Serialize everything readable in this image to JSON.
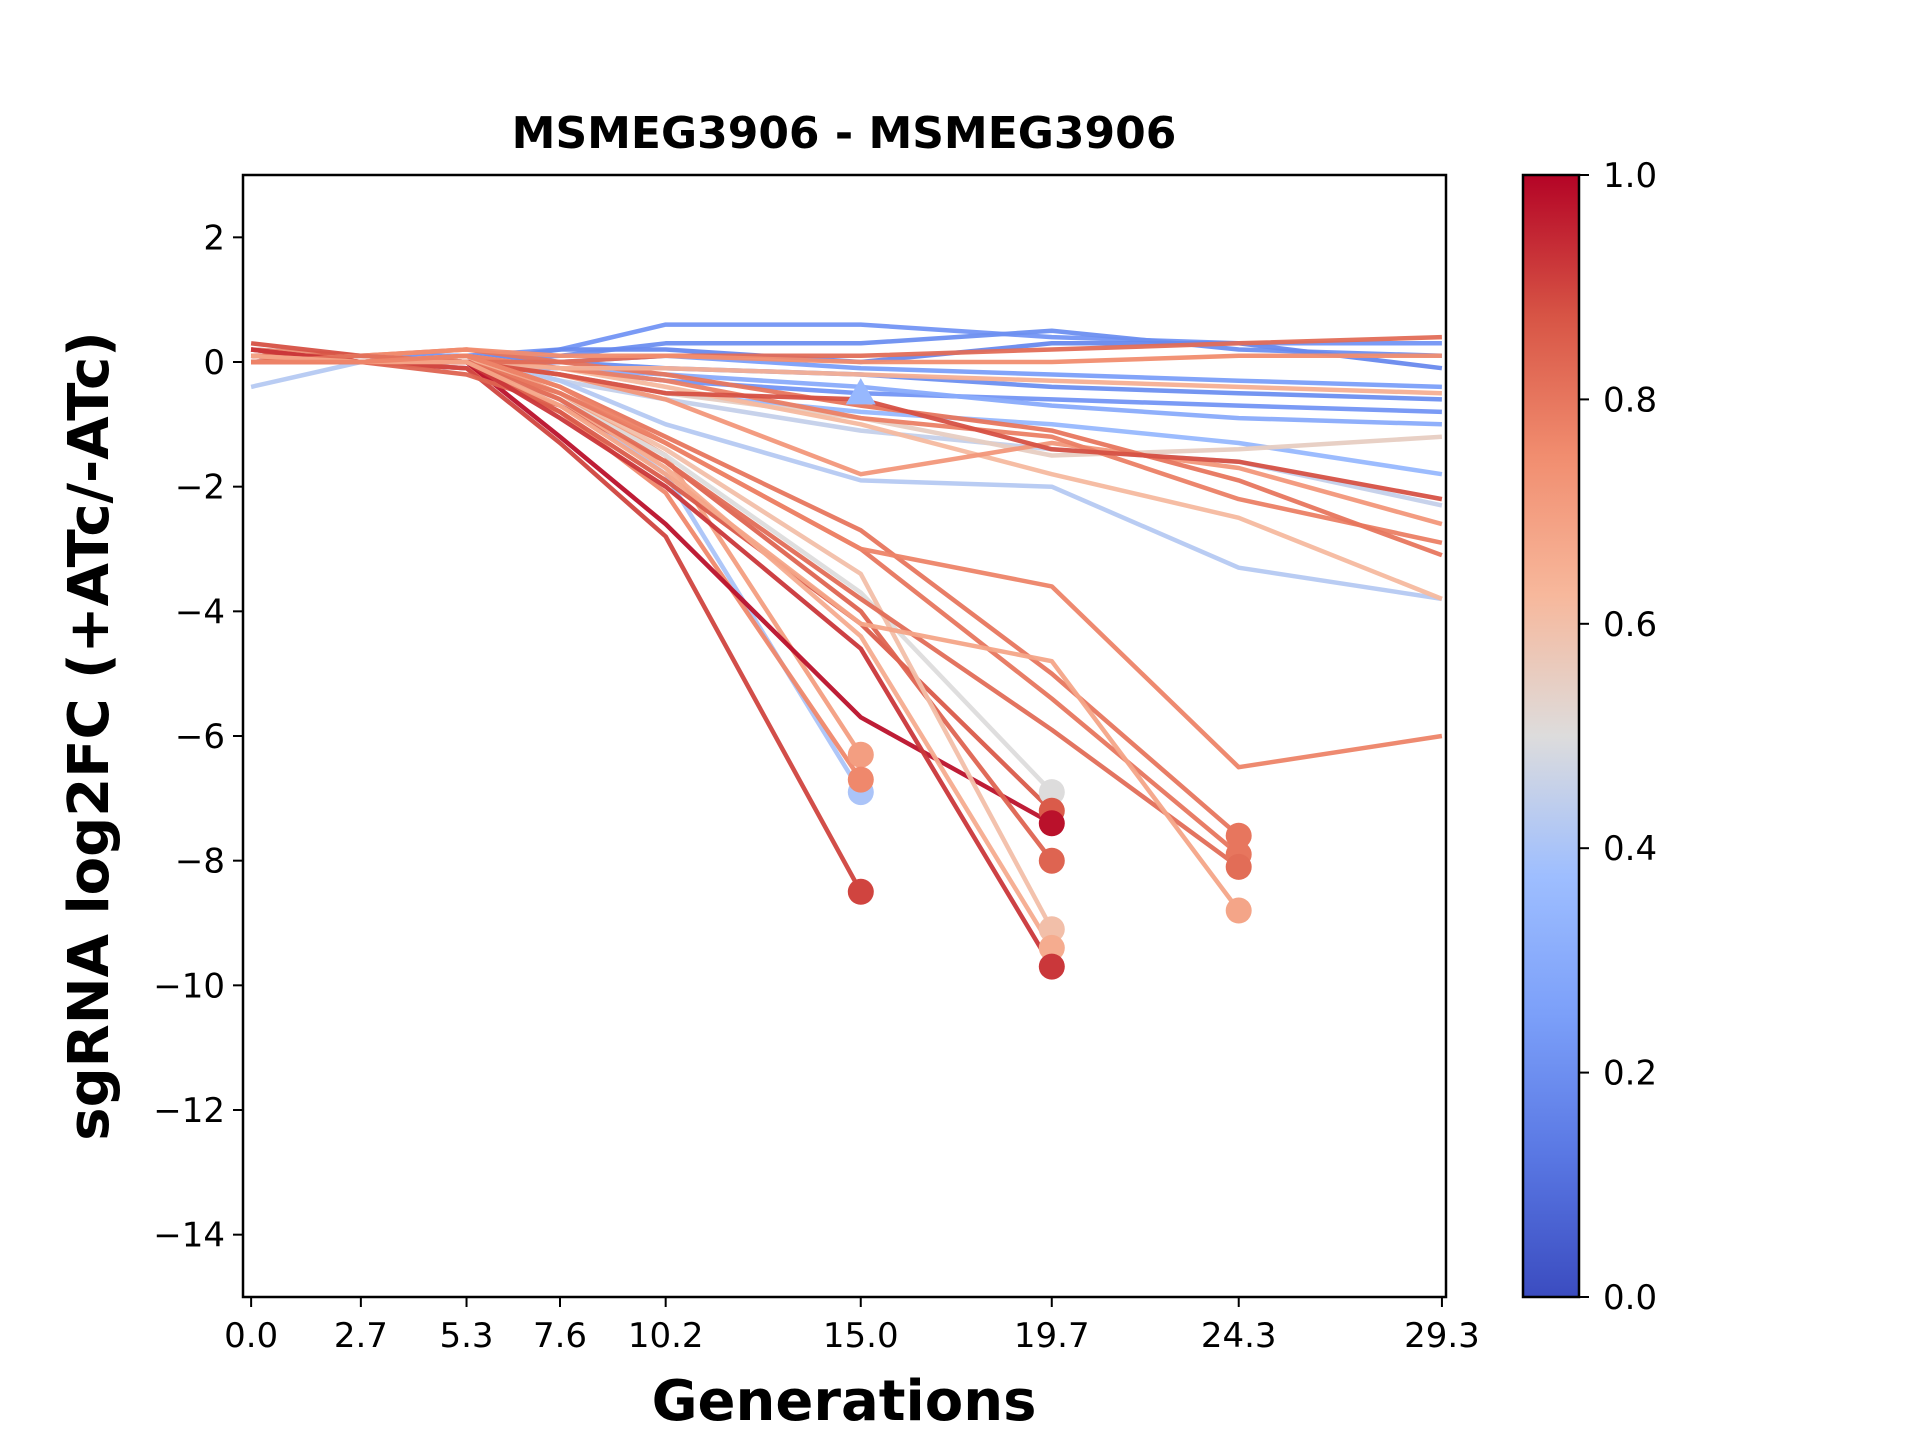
{
  "chart_data": {
    "type": "line",
    "title": "MSMEG3906 - MSMEG3906",
    "xlabel": "Generations",
    "ylabel": "sgRNA log2FC (+ATc/-ATc)",
    "x_ticks": [
      0.0,
      2.7,
      5.3,
      7.6,
      10.2,
      15.0,
      19.7,
      24.3,
      29.3
    ],
    "x_tick_labels": [
      "0.0",
      "2.7",
      "5.3",
      "7.6",
      "10.2",
      "15.0",
      "19.7",
      "24.3",
      "29.3"
    ],
    "y_ticks": [
      2,
      0,
      -2,
      -4,
      -6,
      -8,
      -10,
      -12,
      -14
    ],
    "y_tick_labels": [
      "2",
      "0",
      "−2",
      "−4",
      "−6",
      "−8",
      "−10",
      "−12",
      "−14"
    ],
    "xlim": [
      -0.2,
      29.4
    ],
    "ylim": [
      -15,
      3
    ],
    "grid": false,
    "colorbar": {
      "cmap": "coolwarm",
      "range": [
        0,
        1
      ],
      "ticks": [
        0.0,
        0.2,
        0.4,
        0.6,
        0.8,
        1.0
      ],
      "tick_labels": [
        "0.0",
        "0.2",
        "0.4",
        "0.6",
        "0.8",
        "1.0"
      ]
    },
    "series": [
      {
        "c": 0.22,
        "x": [
          0,
          2.7,
          5.3,
          7.6,
          10.2,
          15.0,
          19.7,
          24.3,
          29.3
        ],
        "y": [
          0.2,
          0.1,
          0.1,
          0.2,
          0.6,
          0.6,
          0.4,
          0.3,
          0.3
        ]
      },
      {
        "c": 0.2,
        "x": [
          0,
          2.7,
          5.3,
          7.6,
          10.2,
          15.0,
          19.7,
          24.3,
          29.3
        ],
        "y": [
          0.1,
          0.0,
          0.0,
          0.1,
          0.3,
          0.3,
          0.5,
          0.2,
          0.1
        ]
      },
      {
        "c": 0.18,
        "x": [
          0,
          2.7,
          5.3,
          7.6,
          10.2,
          15.0,
          19.7,
          24.3,
          29.3
        ],
        "y": [
          0.0,
          0.1,
          0.0,
          0.2,
          0.2,
          0.0,
          0.3,
          0.3,
          -0.1
        ]
      },
      {
        "c": 0.25,
        "x": [
          0,
          2.7,
          5.3,
          7.6,
          10.2,
          15.0,
          19.7,
          24.3,
          29.3
        ],
        "y": [
          0.1,
          0.0,
          -0.1,
          0.0,
          0.1,
          -0.1,
          -0.2,
          -0.3,
          -0.4
        ]
      },
      {
        "c": 0.2,
        "x": [
          0,
          2.7,
          5.3,
          7.6,
          10.2,
          15.0,
          19.7,
          24.3,
          29.3
        ],
        "y": [
          0.0,
          0.0,
          0.1,
          0.0,
          -0.1,
          -0.2,
          -0.4,
          -0.5,
          -0.6
        ]
      },
      {
        "c": 0.22,
        "x": [
          0,
          2.7,
          5.3,
          7.6,
          10.2,
          15.0,
          19.7,
          24.3,
          29.3
        ],
        "y": [
          0.1,
          0.0,
          0.0,
          -0.1,
          -0.3,
          -0.5,
          -0.6,
          -0.7,
          -0.8
        ]
      },
      {
        "c": 0.3,
        "x": [
          0,
          2.7,
          5.3,
          7.6,
          10.2,
          15.0,
          19.7,
          24.3,
          29.3
        ],
        "y": [
          0.0,
          0.0,
          -0.1,
          -0.1,
          -0.2,
          -0.4,
          -0.7,
          -0.9,
          -1.0
        ]
      },
      {
        "c": 0.35,
        "x": [
          0,
          2.7,
          5.3,
          7.6,
          10.2,
          15.0,
          19.7,
          24.3,
          29.3
        ],
        "y": [
          0.1,
          0.0,
          0.0,
          -0.2,
          -0.5,
          -0.8,
          -1.0,
          -1.3,
          -1.8
        ]
      },
      {
        "c": 0.45,
        "x": [
          0,
          2.7,
          5.3,
          7.6,
          10.2,
          15.0,
          19.7,
          24.3,
          29.3
        ],
        "y": [
          0.0,
          0.1,
          0.0,
          -0.3,
          -0.6,
          -1.1,
          -1.4,
          -1.6,
          -2.3
        ]
      },
      {
        "c": 0.42,
        "x": [
          0,
          2.7,
          5.3,
          7.6,
          10.2,
          15.0,
          19.7,
          24.3,
          29.3
        ],
        "y": [
          -0.4,
          0.0,
          0.1,
          -0.3,
          -1.0,
          -1.9,
          -2.0,
          -3.3,
          -3.8
        ]
      },
      {
        "c": 0.55,
        "x": [
          0,
          2.7,
          5.3,
          7.6,
          10.2,
          15.0,
          19.7,
          24.3,
          29.3
        ],
        "y": [
          0.1,
          0.0,
          0.0,
          -0.2,
          -0.5,
          -0.9,
          -1.5,
          -1.4,
          -1.2
        ]
      },
      {
        "c": 0.62,
        "x": [
          0,
          2.7,
          5.3,
          7.6,
          10.2,
          15.0,
          19.7,
          24.3,
          29.3
        ],
        "y": [
          0.0,
          0.0,
          0.1,
          -0.1,
          -0.4,
          -1.0,
          -1.8,
          -2.5,
          -3.8
        ]
      },
      {
        "c": 0.72,
        "x": [
          0,
          2.7,
          5.3,
          7.6,
          10.2,
          15.0,
          19.7,
          24.3,
          29.3
        ],
        "y": [
          0.1,
          0.1,
          0.0,
          -0.2,
          -0.6,
          -1.8,
          -1.3,
          -1.7,
          -2.6
        ]
      },
      {
        "c": 0.78,
        "x": [
          0,
          2.7,
          5.3,
          7.6,
          10.2,
          15.0,
          19.7,
          24.3,
          29.3
        ],
        "y": [
          0.2,
          0.0,
          0.1,
          -0.1,
          -0.3,
          -0.9,
          -1.2,
          -2.2,
          -2.9
        ]
      },
      {
        "c": 0.8,
        "x": [
          0,
          2.7,
          5.3,
          7.6,
          10.2,
          15.0,
          19.7,
          24.3,
          29.3
        ],
        "y": [
          0.0,
          0.1,
          0.2,
          0.0,
          -0.2,
          -0.7,
          -1.1,
          -1.9,
          -3.1
        ]
      },
      {
        "c": 0.65,
        "x": [
          0,
          2.7,
          5.3,
          7.6,
          10.2,
          15.0,
          19.7,
          24.3,
          29.3
        ],
        "y": [
          0.1,
          0.0,
          0.0,
          -0.1,
          -0.1,
          -0.2,
          -0.3,
          -0.4,
          -0.5
        ]
      },
      {
        "c": 0.82,
        "x": [
          0,
          2.7,
          5.3,
          7.6,
          10.2,
          15.0,
          19.7,
          24.3,
          29.3
        ],
        "y": [
          0.0,
          0.0,
          0.0,
          0.0,
          0.1,
          0.1,
          0.2,
          0.3,
          0.4
        ]
      },
      {
        "c": 0.75,
        "x": [
          0,
          2.7,
          5.3,
          7.6,
          10.2,
          15.0,
          19.7,
          24.3,
          29.3
        ],
        "y": [
          0.2,
          0.1,
          0.2,
          0.1,
          0.1,
          0.0,
          0.0,
          0.1,
          0.1
        ]
      },
      {
        "c": 0.88,
        "x": [
          0,
          2.7,
          5.3,
          7.6,
          10.2,
          15.0,
          19.7,
          24.3,
          29.3
        ],
        "y": [
          0.3,
          0.1,
          0.0,
          -0.2,
          -0.5,
          -0.6,
          -1.4,
          -1.6,
          -2.2
        ]
      },
      {
        "c": 0.4,
        "x": [
          0,
          2.7,
          5.3,
          7.6,
          10.2,
          15.0
        ],
        "y": [
          0.0,
          0.1,
          0.0,
          -0.6,
          -1.8,
          -6.9
        ],
        "end": true
      },
      {
        "c": 0.7,
        "x": [
          0,
          2.7,
          5.3,
          7.6,
          10.2,
          15.0
        ],
        "y": [
          0.1,
          0.0,
          0.1,
          -0.5,
          -1.5,
          -6.3
        ],
        "end": true
      },
      {
        "c": 0.76,
        "x": [
          0,
          2.7,
          5.3,
          7.6,
          10.2,
          15.0
        ],
        "y": [
          0.0,
          0.0,
          -0.1,
          -0.8,
          -2.1,
          -6.7
        ],
        "end": true
      },
      {
        "c": 0.9,
        "x": [
          0,
          2.7,
          5.3,
          7.6,
          10.2,
          15.0
        ],
        "y": [
          0.2,
          0.0,
          -0.1,
          -1.3,
          -2.8,
          -8.5
        ],
        "end": true
      },
      {
        "c": 0.5,
        "x": [
          0,
          2.7,
          5.3,
          7.6,
          10.2,
          15.0,
          19.7
        ],
        "y": [
          0.0,
          0.0,
          0.1,
          -0.6,
          -1.5,
          -3.7,
          -6.9
        ],
        "end": true
      },
      {
        "c": 0.86,
        "x": [
          0,
          2.7,
          5.3,
          7.6,
          10.2,
          15.0,
          19.7
        ],
        "y": [
          0.1,
          0.1,
          0.0,
          -0.8,
          -1.9,
          -4.2,
          -7.2
        ],
        "end": true
      },
      {
        "c": 0.98,
        "x": [
          0,
          2.7,
          5.3,
          7.6,
          10.2,
          15.0,
          19.7
        ],
        "y": [
          0.1,
          0.0,
          0.0,
          -1.2,
          -2.6,
          -5.7,
          -7.4
        ],
        "end": true
      },
      {
        "c": 0.84,
        "x": [
          0,
          2.7,
          5.3,
          7.6,
          10.2,
          15.0,
          19.7
        ],
        "y": [
          0.0,
          0.0,
          -0.2,
          -0.7,
          -1.6,
          -4.0,
          -8.0
        ],
        "end": true
      },
      {
        "c": 0.6,
        "x": [
          0,
          2.7,
          5.3,
          7.6,
          10.2,
          15.0,
          19.7
        ],
        "y": [
          0.0,
          0.1,
          0.0,
          -0.5,
          -1.4,
          -3.4,
          -9.1
        ],
        "end": true
      },
      {
        "c": 0.66,
        "x": [
          0,
          2.7,
          5.3,
          7.6,
          10.2,
          15.0,
          19.7
        ],
        "y": [
          0.1,
          0.0,
          0.1,
          -0.6,
          -1.7,
          -4.4,
          -9.4
        ],
        "end": true
      },
      {
        "c": 0.92,
        "x": [
          0,
          2.7,
          5.3,
          7.6,
          10.2,
          15.0,
          19.7
        ],
        "y": [
          0.2,
          0.0,
          0.0,
          -0.9,
          -2.0,
          -4.6,
          -9.7
        ],
        "end": true
      },
      {
        "c": 0.8,
        "x": [
          0,
          2.7,
          5.3,
          7.6,
          10.2,
          15.0,
          19.7,
          24.3
        ],
        "y": [
          0.0,
          0.0,
          0.1,
          -0.4,
          -1.2,
          -2.7,
          -5.0,
          -7.6
        ],
        "end": true
      },
      {
        "c": 0.8,
        "x": [
          0,
          2.7,
          5.3,
          7.6,
          10.2,
          15.0,
          19.7,
          24.3
        ],
        "y": [
          0.1,
          0.0,
          0.0,
          -0.5,
          -1.3,
          -3.0,
          -5.4,
          -7.9
        ],
        "end": true
      },
      {
        "c": 0.82,
        "x": [
          0,
          2.7,
          5.3,
          7.6,
          10.2,
          15.0,
          19.7,
          24.3
        ],
        "y": [
          0.0,
          0.1,
          0.0,
          -0.6,
          -1.6,
          -3.8,
          -5.9,
          -8.1
        ],
        "end": true
      },
      {
        "c": 0.68,
        "x": [
          0,
          2.7,
          5.3,
          7.6,
          10.2,
          15.0,
          19.7,
          24.3
        ],
        "y": [
          0.1,
          0.0,
          0.0,
          -0.7,
          -1.8,
          -4.2,
          -4.8,
          -8.8
        ],
        "end": true
      },
      {
        "c": 0.77,
        "x": [
          0,
          2.7,
          5.3,
          7.6,
          10.2,
          15.0,
          19.7,
          24.3,
          29.3
        ],
        "y": [
          0.0,
          0.0,
          0.1,
          -0.4,
          -1.3,
          -3.0,
          -3.6,
          -6.5,
          -6.0
        ]
      }
    ],
    "markers": [
      {
        "shape": "triangle",
        "x": 15.0,
        "y": -0.5,
        "c": 0.35
      }
    ]
  }
}
